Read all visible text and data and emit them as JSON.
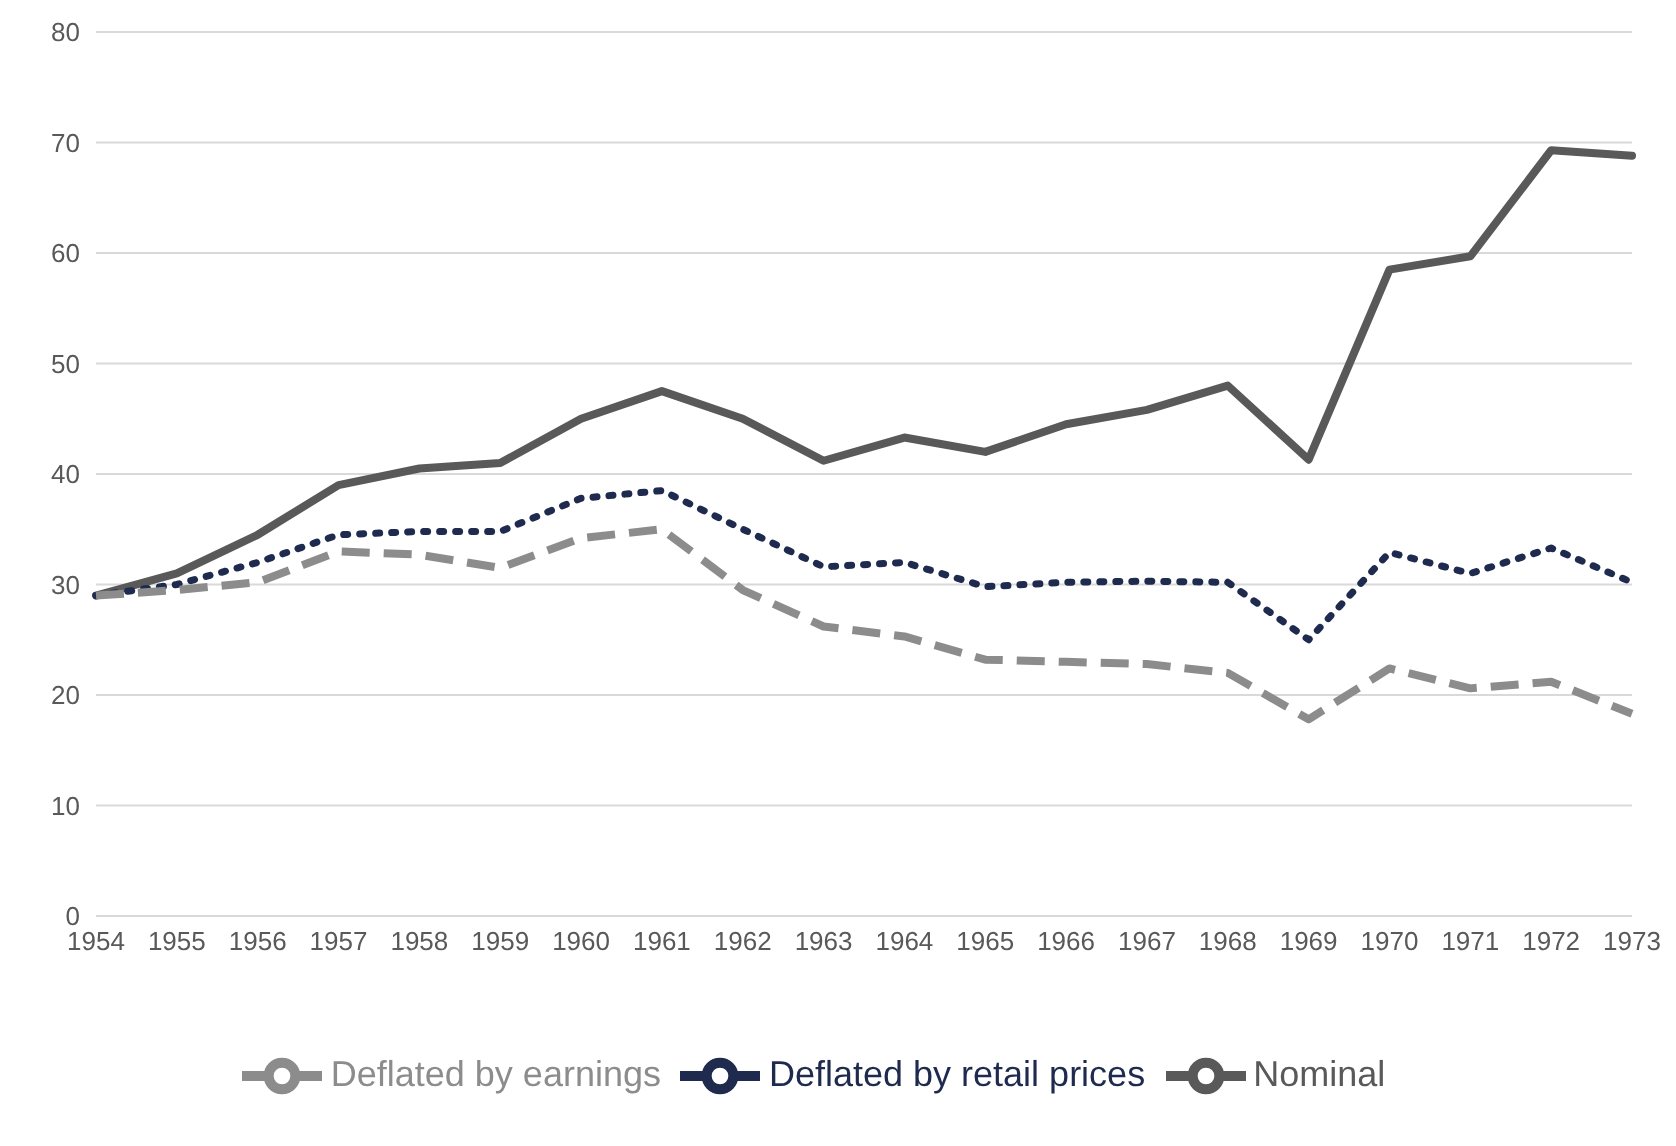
{
  "chart_data": {
    "type": "line",
    "categories": [
      "1954",
      "1955",
      "1956",
      "1957",
      "1958",
      "1959",
      "1960",
      "1961",
      "1962",
      "1963",
      "1964",
      "1965",
      "1966",
      "1967",
      "1968",
      "1969",
      "1970",
      "1971",
      "1972",
      "1973"
    ],
    "series": [
      {
        "name": "Nominal",
        "color": "#595959",
        "line_style": "solid",
        "values": [
          29,
          31,
          34.5,
          39,
          40.5,
          41,
          45,
          47.5,
          45,
          41.2,
          43.3,
          42,
          44.5,
          45.8,
          48,
          41.3,
          58.5,
          59.7,
          69.3,
          68.8
        ]
      },
      {
        "name": "Deflated by retail prices",
        "color": "#1f2a4f",
        "line_style": "dotted",
        "values": [
          29,
          30,
          32,
          34.5,
          34.8,
          34.8,
          37.8,
          38.5,
          35,
          31.6,
          32,
          29.8,
          30.2,
          30.3,
          30.2,
          25,
          32.9,
          31,
          33.3,
          30.2
        ]
      },
      {
        "name": "Deflated by earnings",
        "color": "#8c8c8c",
        "line_style": "dashed",
        "values": [
          29,
          29.5,
          30.2,
          33,
          32.7,
          31.5,
          34.2,
          35,
          29.5,
          26.2,
          25.3,
          23.2,
          23,
          22.8,
          22,
          17.8,
          22.4,
          20.6,
          21.2,
          18.3
        ]
      }
    ],
    "ylim": [
      0,
      80
    ],
    "yticks": [
      0,
      10,
      20,
      30,
      40,
      50,
      60,
      70,
      80
    ],
    "grid": "y",
    "legend": "bottom",
    "marker": "none"
  }
}
